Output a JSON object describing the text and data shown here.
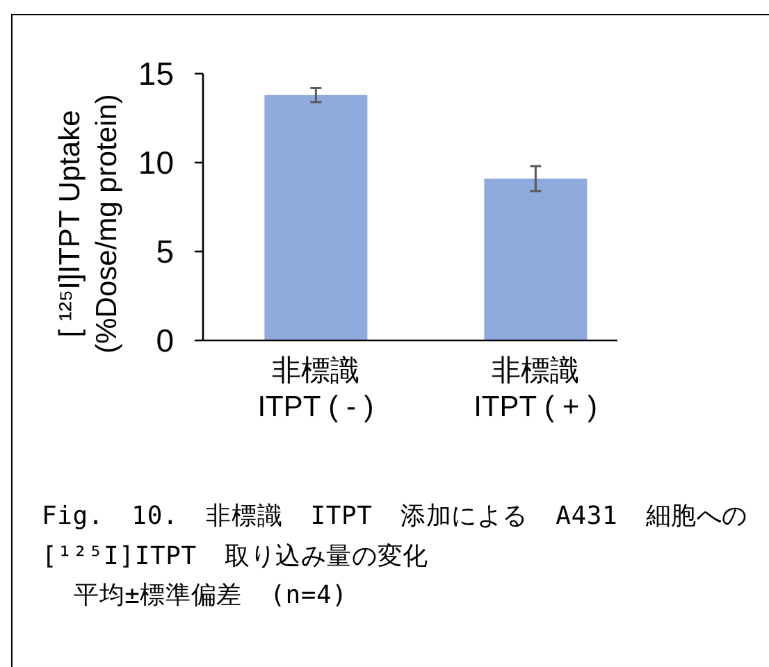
{
  "chart_data": {
    "type": "bar",
    "categories": [
      "非標識\nITPT ( - )",
      "非標識\nITPT ( + )"
    ],
    "values": [
      13.8,
      9.1
    ],
    "errors": [
      0.4,
      0.7
    ],
    "color": "#8faadc",
    "ylabel": "[ ¹²⁵I]ITPT Uptake\n(%Dose/mg protein)",
    "ylim": [
      0,
      15
    ],
    "yticks": [
      0,
      5,
      10,
      15
    ],
    "annotations": [
      "Fig. 10. 非標識 ITPT 添加による A431 細胞への",
      "[¹²⁵I]ITPT 取り込み量の変化",
      "平均±標準偏差 (n=4)"
    ]
  }
}
